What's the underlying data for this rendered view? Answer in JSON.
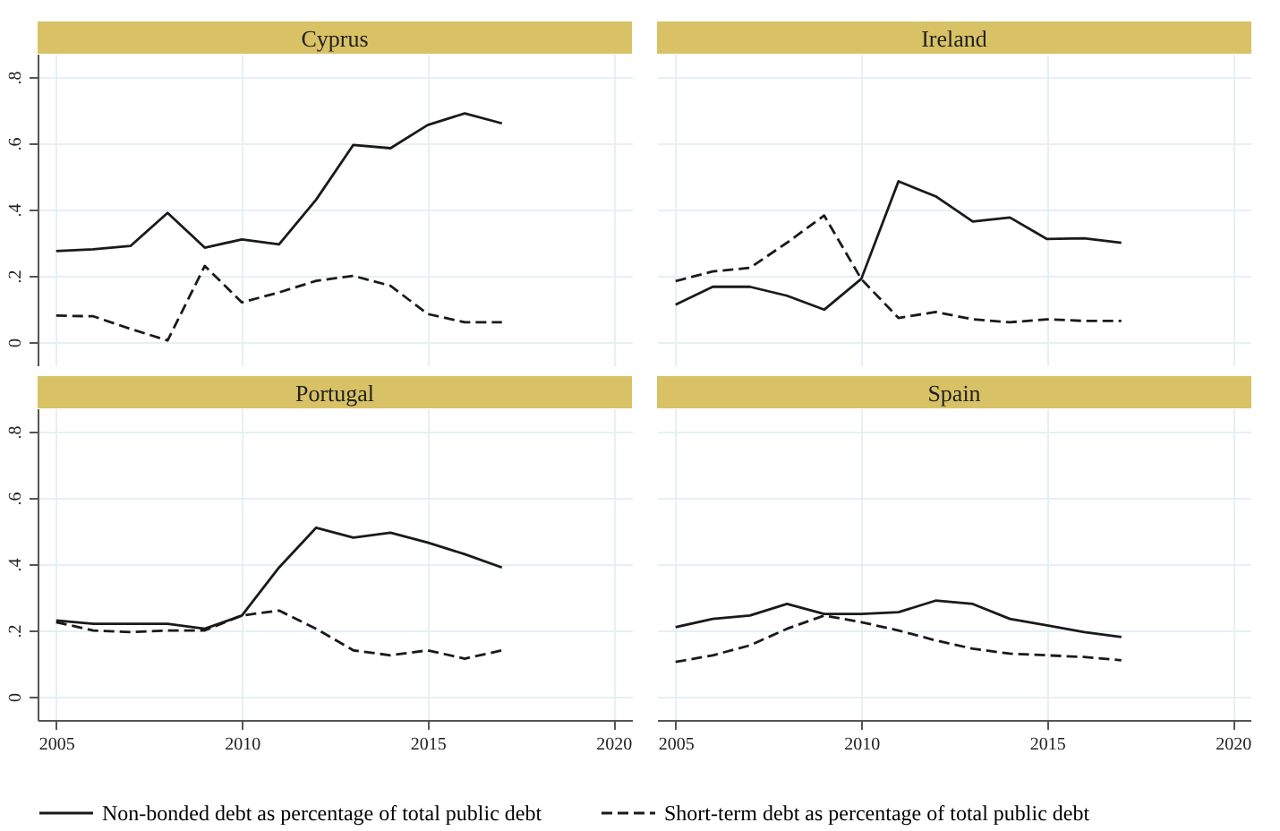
{
  "chart_data": [
    {
      "type": "line",
      "title": "Cyprus",
      "x": [
        2005,
        2006,
        2007,
        2008,
        2009,
        2010,
        2011,
        2012,
        2013,
        2014,
        2015,
        2016,
        2017
      ],
      "xlim": [
        2004.5,
        2020.5
      ],
      "xticks": [
        2005,
        2010,
        2015,
        2020
      ],
      "ylim": [
        -0.07,
        0.87
      ],
      "yticks": [
        {
          "value": 0,
          "label": "0"
        },
        {
          "value": 0.2,
          "label": ".2"
        },
        {
          "value": 0.4,
          "label": ".4"
        },
        {
          "value": 0.6,
          "label": ".6"
        },
        {
          "value": 0.8,
          "label": ".8"
        }
      ],
      "grid": true,
      "legend": "bottom",
      "tick_labels": "y",
      "series": [
        {
          "name": "Non-bonded debt as percentage of total public debt",
          "color": "#1a1a1a",
          "line_style": "solid",
          "values": [
            0.275,
            0.28,
            0.29,
            0.39,
            0.285,
            0.31,
            0.295,
            0.43,
            0.595,
            0.585,
            0.655,
            0.69,
            0.66
          ]
        },
        {
          "name": "Short-term debt as percentage of total public debt",
          "color": "#1a1a1a",
          "line_style": "dashed",
          "values": [
            0.08,
            0.078,
            0.04,
            0.005,
            0.23,
            0.12,
            0.15,
            0.185,
            0.2,
            0.17,
            0.085,
            0.06,
            0.06
          ]
        }
      ]
    },
    {
      "type": "line",
      "title": "Ireland",
      "x": [
        2005,
        2006,
        2007,
        2008,
        2009,
        2010,
        2011,
        2012,
        2013,
        2014,
        2015,
        2016,
        2017
      ],
      "xlim": [
        2004.5,
        2020.5
      ],
      "xticks": [
        2005,
        2010,
        2015,
        2020
      ],
      "ylim": [
        -0.07,
        0.87
      ],
      "yticks": [
        {
          "value": 0,
          "label": "0"
        },
        {
          "value": 0.2,
          "label": ".2"
        },
        {
          "value": 0.4,
          "label": ".4"
        },
        {
          "value": 0.6,
          "label": ".6"
        },
        {
          "value": 0.8,
          "label": ".8"
        }
      ],
      "grid": true,
      "legend": "bottom",
      "tick_labels": false,
      "series": [
        {
          "name": "Non-bonded debt as percentage of total public debt",
          "color": "#1a1a1a",
          "line_style": "solid",
          "values": [
            0.113,
            0.167,
            0.167,
            0.14,
            0.098,
            0.191,
            0.485,
            0.44,
            0.364,
            0.376,
            0.311,
            0.313,
            0.3
          ]
        },
        {
          "name": "Short-term debt as percentage of total public debt",
          "color": "#1a1a1a",
          "line_style": "dashed",
          "values": [
            0.184,
            0.213,
            0.224,
            0.3,
            0.382,
            0.19,
            0.073,
            0.091,
            0.069,
            0.06,
            0.069,
            0.064,
            0.064
          ]
        }
      ]
    },
    {
      "type": "line",
      "title": "Portugal",
      "x": [
        2005,
        2006,
        2007,
        2008,
        2009,
        2010,
        2011,
        2012,
        2013,
        2014,
        2015,
        2016,
        2017
      ],
      "xlim": [
        2004.5,
        2020.5
      ],
      "xticks": [
        2005,
        2010,
        2015,
        2020
      ],
      "ylim": [
        -0.07,
        0.87
      ],
      "yticks": [
        {
          "value": 0,
          "label": "0"
        },
        {
          "value": 0.2,
          "label": ".2"
        },
        {
          "value": 0.4,
          "label": ".4"
        },
        {
          "value": 0.6,
          "label": ".6"
        },
        {
          "value": 0.8,
          "label": ".8"
        }
      ],
      "grid": true,
      "legend": "bottom",
      "series": [
        {
          "name": "Non-bonded debt as percentage of total public debt",
          "color": "#1a1a1a",
          "line_style": "solid",
          "values": [
            0.23,
            0.22,
            0.22,
            0.22,
            0.205,
            0.245,
            0.39,
            0.51,
            0.48,
            0.495,
            0.465,
            0.43,
            0.39
          ]
        },
        {
          "name": "Short-term debt as percentage of total public debt",
          "color": "#1a1a1a",
          "line_style": "dashed",
          "values": [
            0.225,
            0.2,
            0.195,
            0.2,
            0.2,
            0.245,
            0.26,
            0.205,
            0.14,
            0.125,
            0.14,
            0.115,
            0.14
          ]
        }
      ]
    },
    {
      "type": "line",
      "title": "Spain",
      "x": [
        2005,
        2006,
        2007,
        2008,
        2009,
        2010,
        2011,
        2012,
        2013,
        2014,
        2015,
        2016,
        2017
      ],
      "xlim": [
        2004.5,
        2020.5
      ],
      "xticks": [
        2005,
        2010,
        2015,
        2020
      ],
      "ylim": [
        -0.07,
        0.87
      ],
      "yticks": [
        {
          "value": 0,
          "label": "0"
        },
        {
          "value": 0.2,
          "label": ".2"
        },
        {
          "value": 0.4,
          "label": ".4"
        },
        {
          "value": 0.6,
          "label": ".6"
        },
        {
          "value": 0.8,
          "label": ".8"
        }
      ],
      "grid": true,
      "legend": "bottom",
      "tick_labels": "x",
      "series": [
        {
          "name": "Non-bonded debt as percentage of total public debt",
          "color": "#1a1a1a",
          "line_style": "solid",
          "values": [
            0.21,
            0.235,
            0.245,
            0.28,
            0.25,
            0.25,
            0.255,
            0.29,
            0.28,
            0.235,
            0.215,
            0.195,
            0.18
          ]
        },
        {
          "name": "Short-term debt as percentage of total public debt",
          "color": "#1a1a1a",
          "line_style": "dashed",
          "values": [
            0.105,
            0.125,
            0.155,
            0.205,
            0.245,
            0.225,
            0.2,
            0.17,
            0.145,
            0.13,
            0.125,
            0.12,
            0.11
          ]
        }
      ]
    }
  ]
}
